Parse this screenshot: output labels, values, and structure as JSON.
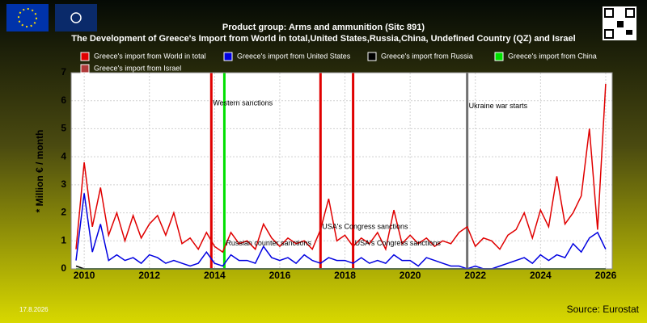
{
  "chart_data": {
    "type": "line",
    "title": "Product group: Arms and ammunition (Sitc 891)",
    "subtitle": "The Development of Greece's Import from World in total,United States,Russia,China, Undefined Country (QZ) and Israel",
    "ylabel": "* Million € / month",
    "date": "17.8.2026",
    "source": "Source: Eurostat",
    "xlim": [
      2009.6,
      2026.2
    ],
    "xticks": [
      2010,
      2012,
      2014,
      2016,
      2018,
      2020,
      2022,
      2024,
      2026
    ],
    "ylim": [
      0,
      7
    ],
    "yticks": [
      0,
      1,
      2,
      3,
      4,
      5,
      6,
      7
    ],
    "grid": true,
    "x": [
      2009.75,
      2010,
      2010.25,
      2010.5,
      2010.75,
      2011,
      2011.25,
      2011.5,
      2011.75,
      2012,
      2012.25,
      2012.5,
      2012.75,
      2013,
      2013.25,
      2013.5,
      2013.75,
      2014,
      2014.25,
      2014.5,
      2014.75,
      2015,
      2015.25,
      2015.5,
      2015.75,
      2016,
      2016.25,
      2016.5,
      2016.75,
      2017,
      2017.25,
      2017.5,
      2017.75,
      2018,
      2018.25,
      2018.5,
      2018.75,
      2019,
      2019.25,
      2019.5,
      2019.75,
      2020,
      2020.25,
      2020.5,
      2020.75,
      2021,
      2021.25,
      2021.5,
      2021.75,
      2022,
      2022.25,
      2022.5,
      2022.75,
      2023,
      2023.25,
      2023.5,
      2023.75,
      2024,
      2024.25,
      2024.5,
      2024.75,
      2025,
      2025.25,
      2025.5,
      2025.75,
      2026
    ],
    "series": [
      {
        "name": "Greece's import from Israel",
        "color": "#b03a3a",
        "values": [
          0,
          0,
          0,
          0,
          0,
          0,
          0,
          0,
          0,
          0,
          0,
          0,
          0,
          0,
          0,
          0,
          0,
          0,
          0,
          0,
          0,
          0,
          0,
          0,
          0,
          0,
          0,
          0,
          0,
          0,
          0,
          0,
          0,
          0,
          0,
          0,
          0,
          0,
          0,
          0,
          0,
          0,
          0,
          0,
          0,
          0,
          0,
          0,
          0,
          0,
          0,
          0,
          0,
          0,
          0,
          0,
          0,
          0,
          0,
          0,
          0,
          0,
          0,
          0,
          0,
          0
        ]
      },
      {
        "name": "Greece's import from China",
        "color": "#00e000",
        "values": [
          0,
          0,
          0,
          0,
          0,
          0,
          0,
          0,
          0,
          0,
          0,
          0,
          0,
          0,
          0,
          0,
          0,
          0,
          0,
          0,
          0,
          0,
          0,
          0,
          0,
          0,
          0,
          0,
          0,
          0,
          0,
          0,
          0,
          0,
          0,
          0,
          0,
          0,
          0,
          0,
          0,
          0,
          0,
          0,
          0,
          0,
          0,
          0,
          0,
          0,
          0,
          0,
          0,
          0,
          0,
          0,
          0,
          0,
          0,
          0,
          0,
          0,
          0,
          0,
          0,
          0
        ]
      },
      {
        "name": "Greece's import from Russia",
        "color": "#000000",
        "values": [
          0.1,
          0,
          0,
          0,
          0,
          0,
          0,
          0,
          0,
          0,
          0,
          0,
          0,
          0,
          0,
          0,
          0,
          0,
          0,
          0,
          0,
          0,
          0,
          0,
          0,
          0,
          0,
          0,
          0,
          0,
          0,
          0,
          0,
          0,
          0,
          0,
          0,
          0,
          0,
          0,
          0,
          0,
          0,
          0,
          0,
          0,
          0,
          0,
          0,
          0,
          0,
          0,
          0,
          0,
          0,
          0,
          0,
          0,
          0,
          0,
          0,
          0,
          0,
          0,
          0,
          0
        ]
      },
      {
        "name": "Greece's import from World in total",
        "color": "#e00000",
        "values": [
          0.7,
          3.8,
          1.5,
          2.9,
          1.2,
          2.0,
          1.0,
          1.9,
          1.1,
          1.6,
          1.9,
          1.2,
          2.0,
          0.9,
          1.1,
          0.7,
          1.3,
          0.8,
          0.6,
          1.3,
          0.9,
          1.0,
          0.7,
          1.6,
          1.1,
          0.8,
          1.1,
          0.9,
          1.0,
          0.7,
          1.4,
          2.5,
          1.0,
          1.2,
          0.8,
          1.1,
          0.9,
          1.3,
          0.7,
          2.1,
          0.9,
          1.2,
          0.9,
          1.1,
          0.8,
          1.0,
          0.9,
          1.3,
          1.5,
          0.8,
          1.1,
          1.0,
          0.7,
          1.2,
          1.4,
          2.0,
          1.1,
          2.1,
          1.5,
          3.3,
          1.6,
          2.0,
          2.6,
          5.0,
          1.4,
          6.6
        ]
      },
      {
        "name": "Greece's import from United States",
        "color": "#0000e0",
        "values": [
          0.3,
          2.7,
          0.6,
          1.6,
          0.3,
          0.5,
          0.3,
          0.4,
          0.2,
          0.5,
          0.4,
          0.2,
          0.3,
          0.2,
          0.1,
          0.2,
          0.6,
          0.2,
          0.1,
          0.5,
          0.3,
          0.3,
          0.2,
          0.8,
          0.4,
          0.3,
          0.4,
          0.2,
          0.5,
          0.3,
          0.2,
          0.4,
          0.3,
          0.3,
          0.2,
          0.4,
          0.2,
          0.3,
          0.2,
          0.5,
          0.3,
          0.3,
          0.1,
          0.4,
          0.3,
          0.2,
          0.1,
          0.1,
          0.0,
          0.1,
          0.0,
          0.0,
          0.1,
          0.2,
          0.3,
          0.4,
          0.2,
          0.5,
          0.3,
          0.5,
          0.4,
          0.9,
          0.6,
          1.1,
          1.3,
          0.7
        ]
      }
    ],
    "legend_order": [
      "Greece's import from World in total",
      "Greece's import from United States",
      "Greece's import from Russia",
      "Greece's import from China",
      "Greece's import from Israel"
    ],
    "events": [
      {
        "x": 2013.9,
        "color": "#e00000",
        "label": "Western sanctions",
        "label_y": 5.9
      },
      {
        "x": 2014.3,
        "color": "#00e000",
        "label": "Russian counter sanctions",
        "label_y": 0.9
      },
      {
        "x": 2017.25,
        "color": "#e00000",
        "label": "USA's Congress sanctions",
        "label_y": 1.5
      },
      {
        "x": 2018.25,
        "color": "#e00000",
        "label": "USA's Congress sanctions",
        "label_y": 0.9
      },
      {
        "x": 2021.75,
        "color": "#707070",
        "label": "Ukraine war starts",
        "label_y": 5.8
      }
    ]
  }
}
